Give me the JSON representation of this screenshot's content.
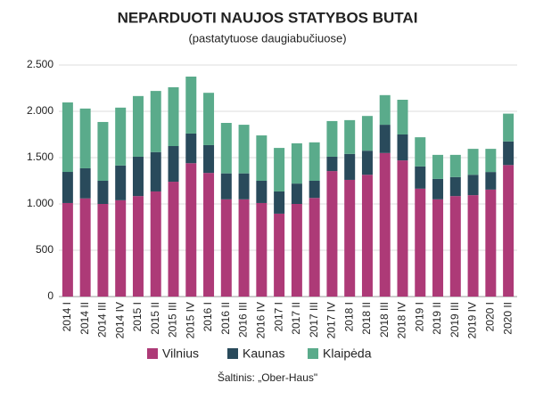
{
  "chart_data": {
    "type": "stacked_bar",
    "title": "NEPARDUOTI NAUJOS STATYBOS BUTAI",
    "subtitle": "(pastatytuose daugiabučiuose)",
    "source": "Šaltinis: „Ober-Haus\"",
    "categories": [
      "2014 I",
      "2014 II",
      "2014 III",
      "2014 IV",
      "2015 I",
      "2015 II",
      "2015 III",
      "2015 IV",
      "2016 I",
      "2016 II",
      "2016 III",
      "2016 IV",
      "2017 I",
      "2017 II",
      "2017 III",
      "2017 IV",
      "2018 I",
      "2018 II",
      "2018 III",
      "2018 IV",
      "2019 I",
      "2019 II",
      "2019 III",
      "2019 IV",
      "2020 I",
      "2020 II"
    ],
    "series": [
      {
        "name": "Vilnius",
        "color": "#ad3a77",
        "values": [
          1010,
          1060,
          1000,
          1040,
          1085,
          1135,
          1240,
          1440,
          1335,
          1050,
          1050,
          1010,
          895,
          1000,
          1065,
          1355,
          1260,
          1315,
          1550,
          1470,
          1165,
          1050,
          1085,
          1095,
          1155,
          1420
        ]
      },
      {
        "name": "Kaunas",
        "color": "#294a5b",
        "values": [
          336,
          325,
          250,
          375,
          425,
          425,
          385,
          320,
          300,
          280,
          280,
          240,
          240,
          220,
          185,
          155,
          280,
          260,
          305,
          280,
          240,
          220,
          205,
          220,
          190,
          255
        ]
      },
      {
        "name": "Klaipėda",
        "color": "#5aab8b",
        "values": [
          750,
          645,
          635,
          625,
          655,
          660,
          635,
          615,
          565,
          545,
          525,
          490,
          470,
          435,
          415,
          385,
          365,
          375,
          320,
          375,
          315,
          260,
          240,
          280,
          250,
          300
        ]
      }
    ],
    "ylim": [
      0,
      2500
    ],
    "yticks": [
      0,
      500,
      {
        "value": 1000,
        "label": "1.000"
      },
      {
        "value": 1500,
        "label": "1.500"
      },
      {
        "value": 2000,
        "label": "2.000"
      },
      {
        "value": 2500,
        "label": "2.500"
      }
    ],
    "grid": true
  }
}
